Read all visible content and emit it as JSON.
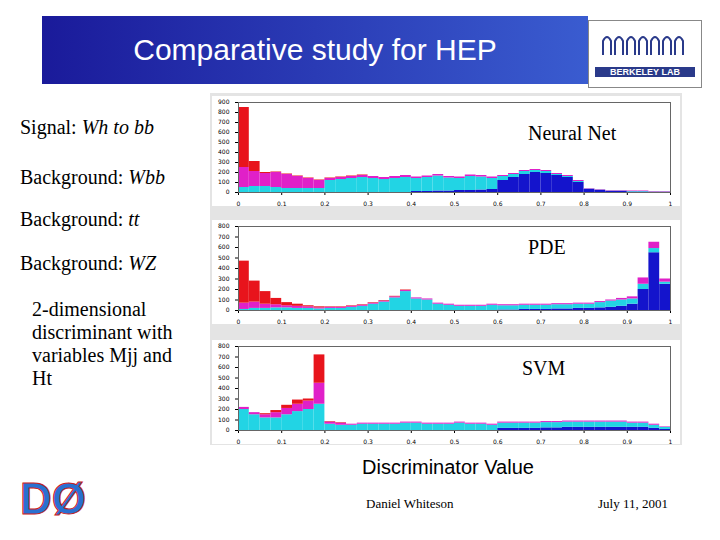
{
  "slide": {
    "title": "Comparative study for HEP",
    "items": [
      {
        "lead": "Signal:",
        "name": "Wh to bb"
      },
      {
        "lead": "Background:",
        "name": "Wbb"
      },
      {
        "lead": "Background:",
        "name": "tt"
      },
      {
        "lead": "Background:",
        "name": "WZ"
      }
    ],
    "note": "2-dimensional discriminant with variables Mjj and Ht",
    "x_axis_label": "Discriminator Value",
    "author": "Daniel Whiteson",
    "date": "July 11, 2001",
    "logos": [
      "BERKELEY LAB",
      "DØ"
    ]
  },
  "chart_data": [
    {
      "type": "histogram",
      "title": "Neural Net",
      "stacked": true,
      "bins": [
        0,
        0.025,
        0.05,
        0.075,
        0.1,
        0.125,
        0.15,
        0.175,
        0.2,
        0.225,
        0.25,
        0.275,
        0.3,
        0.325,
        0.35,
        0.375,
        0.4,
        0.425,
        0.45,
        0.475,
        0.5,
        0.525,
        0.55,
        0.575,
        0.6,
        0.625,
        0.65,
        0.675,
        0.7,
        0.725,
        0.75,
        0.775,
        0.8,
        0.825,
        0.85,
        0.875,
        0.9,
        0.925,
        0.95,
        0.975,
        1
      ],
      "xlim": [
        0,
        1
      ],
      "xticks": [
        0,
        0.1,
        0.2,
        0.3,
        0.4,
        0.5,
        0.6,
        0.7,
        0.8,
        0.9,
        1
      ],
      "ylim": [
        0,
        900
      ],
      "yticks": [
        0,
        100,
        200,
        300,
        400,
        500,
        600,
        700,
        800,
        900
      ],
      "series": [
        {
          "name": "WZ",
          "color": "#1414cc",
          "values": [
            0,
            0,
            0,
            0,
            0,
            0,
            0,
            0,
            0,
            0,
            0,
            0,
            0,
            0,
            0,
            0,
            10,
            10,
            15,
            15,
            20,
            20,
            25,
            30,
            120,
            150,
            180,
            200,
            190,
            170,
            150,
            100,
            30,
            20,
            10,
            10,
            5,
            5,
            0,
            0
          ]
        },
        {
          "name": "tt",
          "color": "#22d4e4",
          "values": [
            50,
            60,
            60,
            50,
            40,
            40,
            40,
            40,
            120,
            130,
            140,
            150,
            140,
            130,
            140,
            150,
            130,
            140,
            150,
            130,
            120,
            140,
            130,
            110,
            40,
            30,
            30,
            20,
            20,
            10,
            10,
            10,
            5,
            5,
            5,
            5,
            5,
            5,
            5,
            5
          ]
        },
        {
          "name": "Wbb",
          "color": "#e020c8",
          "values": [
            200,
            150,
            130,
            150,
            140,
            120,
            100,
            80,
            20,
            20,
            20,
            20,
            20,
            20,
            20,
            20,
            15,
            15,
            15,
            15,
            15,
            15,
            15,
            15,
            10,
            10,
            10,
            10,
            10,
            10,
            10,
            10,
            5,
            5,
            5,
            5,
            5,
            5,
            5,
            5
          ]
        },
        {
          "name": "Wh to bb",
          "color": "#e8141c",
          "values": [
            600,
            100,
            10,
            5,
            5,
            5,
            5,
            5,
            5,
            5,
            5,
            5,
            0,
            0,
            0,
            0,
            0,
            0,
            0,
            0,
            0,
            0,
            0,
            0,
            0,
            0,
            0,
            0,
            0,
            0,
            0,
            0,
            0,
            0,
            0,
            0,
            0,
            0,
            0,
            0
          ]
        }
      ]
    },
    {
      "type": "histogram",
      "title": "PDE",
      "stacked": true,
      "bins": [
        0,
        0.025,
        0.05,
        0.075,
        0.1,
        0.125,
        0.15,
        0.175,
        0.2,
        0.225,
        0.25,
        0.275,
        0.3,
        0.325,
        0.35,
        0.375,
        0.4,
        0.425,
        0.45,
        0.475,
        0.5,
        0.525,
        0.55,
        0.575,
        0.6,
        0.625,
        0.65,
        0.675,
        0.7,
        0.725,
        0.75,
        0.775,
        0.8,
        0.825,
        0.85,
        0.875,
        0.9,
        0.925,
        0.95,
        0.975,
        1
      ],
      "xlim": [
        0,
        1
      ],
      "xticks": [
        0,
        0.1,
        0.2,
        0.3,
        0.4,
        0.5,
        0.6,
        0.7,
        0.8,
        0.9,
        1
      ],
      "ylim": [
        0,
        800
      ],
      "yticks": [
        0,
        100,
        200,
        300,
        400,
        500,
        600,
        700,
        800
      ],
      "series": [
        {
          "name": "WZ",
          "color": "#1414cc",
          "values": [
            0,
            0,
            0,
            0,
            0,
            0,
            0,
            0,
            0,
            0,
            0,
            0,
            0,
            0,
            0,
            0,
            0,
            0,
            0,
            0,
            0,
            0,
            0,
            0,
            5,
            5,
            10,
            10,
            10,
            15,
            15,
            20,
            20,
            25,
            30,
            40,
            60,
            200,
            550,
            250
          ]
        },
        {
          "name": "tt",
          "color": "#22d4e4",
          "values": [
            10,
            20,
            20,
            25,
            25,
            20,
            20,
            15,
            20,
            20,
            30,
            40,
            60,
            80,
            120,
            180,
            110,
            100,
            60,
            50,
            40,
            40,
            40,
            50,
            40,
            40,
            40,
            40,
            40,
            40,
            40,
            40,
            40,
            50,
            60,
            60,
            50,
            50,
            40,
            20
          ]
        },
        {
          "name": "Wbb",
          "color": "#e020c8",
          "values": [
            60,
            60,
            40,
            30,
            20,
            20,
            15,
            10,
            10,
            10,
            10,
            10,
            10,
            10,
            10,
            10,
            10,
            10,
            10,
            10,
            10,
            10,
            10,
            10,
            10,
            10,
            10,
            10,
            10,
            10,
            10,
            10,
            10,
            10,
            10,
            15,
            20,
            60,
            60,
            30
          ]
        },
        {
          "name": "Wh to bb",
          "color": "#e8141c",
          "values": [
            400,
            200,
            120,
            60,
            30,
            20,
            10,
            10,
            5,
            5,
            5,
            5,
            5,
            5,
            5,
            5,
            0,
            0,
            0,
            0,
            0,
            0,
            0,
            0,
            0,
            0,
            0,
            0,
            0,
            0,
            0,
            0,
            0,
            0,
            0,
            0,
            0,
            0,
            0,
            0
          ]
        }
      ]
    },
    {
      "type": "histogram",
      "title": "SVM",
      "stacked": true,
      "bins": [
        0,
        0.025,
        0.05,
        0.075,
        0.1,
        0.125,
        0.15,
        0.175,
        0.2,
        0.225,
        0.25,
        0.275,
        0.3,
        0.325,
        0.35,
        0.375,
        0.4,
        0.425,
        0.45,
        0.475,
        0.5,
        0.525,
        0.55,
        0.575,
        0.6,
        0.625,
        0.65,
        0.675,
        0.7,
        0.725,
        0.75,
        0.775,
        0.8,
        0.825,
        0.85,
        0.875,
        0.9,
        0.925,
        0.95,
        0.975,
        1
      ],
      "xlim": [
        0,
        1
      ],
      "xticks": [
        0,
        0.1,
        0.2,
        0.3,
        0.4,
        0.5,
        0.6,
        0.7,
        0.8,
        0.9,
        1
      ],
      "ylim": [
        0,
        800
      ],
      "yticks": [
        0,
        100,
        200,
        300,
        400,
        500,
        600,
        700,
        800
      ],
      "series": [
        {
          "name": "WZ",
          "color": "#1414cc",
          "values": [
            0,
            0,
            0,
            0,
            0,
            0,
            0,
            0,
            0,
            0,
            0,
            0,
            0,
            0,
            0,
            0,
            0,
            0,
            0,
            0,
            0,
            0,
            0,
            0,
            20,
            20,
            20,
            20,
            25,
            25,
            30,
            30,
            30,
            30,
            30,
            30,
            30,
            30,
            20,
            10
          ]
        },
        {
          "name": "tt",
          "color": "#22d4e4",
          "values": [
            200,
            150,
            120,
            120,
            150,
            180,
            200,
            250,
            60,
            50,
            50,
            60,
            60,
            60,
            60,
            70,
            70,
            60,
            60,
            60,
            70,
            60,
            60,
            50,
            50,
            50,
            50,
            50,
            50,
            50,
            50,
            50,
            50,
            50,
            50,
            50,
            40,
            40,
            30,
            20
          ]
        },
        {
          "name": "Wbb",
          "color": "#e020c8",
          "values": [
            20,
            20,
            30,
            50,
            60,
            70,
            80,
            200,
            20,
            20,
            10,
            10,
            10,
            10,
            10,
            10,
            10,
            10,
            10,
            10,
            10,
            10,
            10,
            10,
            10,
            10,
            10,
            10,
            10,
            10,
            10,
            10,
            10,
            10,
            10,
            10,
            10,
            10,
            10,
            5
          ]
        },
        {
          "name": "Wh to bb",
          "color": "#e8141c",
          "values": [
            0,
            0,
            10,
            20,
            30,
            40,
            20,
            270,
            5,
            5,
            0,
            0,
            0,
            0,
            0,
            0,
            0,
            0,
            0,
            0,
            0,
            0,
            0,
            0,
            0,
            0,
            0,
            0,
            0,
            0,
            0,
            0,
            0,
            0,
            0,
            0,
            0,
            0,
            0,
            0
          ]
        }
      ]
    }
  ]
}
